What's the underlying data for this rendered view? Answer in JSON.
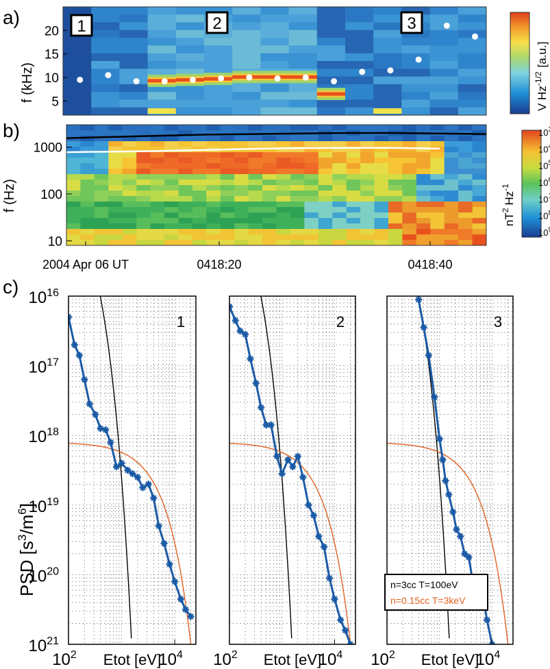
{
  "figure": {
    "panel_labels": [
      "a)",
      "b)",
      "c)"
    ]
  },
  "chart_data": [
    {
      "type": "heatmap",
      "panel": "a)",
      "ylabel": "f (kHz)",
      "yticks": [
        "5",
        "10",
        "15",
        "20"
      ],
      "yticks_values": [
        5,
        10,
        15,
        20
      ],
      "ylim": [
        2,
        25
      ],
      "colorbar_label": "V Hz",
      "colorbar_sup": "-1/2",
      "colorbar_unit": "[a.u.]",
      "region_labels": [
        "1",
        "2",
        "3"
      ],
      "points_khz": [
        9.5,
        10.5,
        9.2,
        9.2,
        9.5,
        9.8,
        10.0,
        9.8,
        10.0,
        9.2,
        11.2,
        11.5,
        13.8,
        21.0,
        18.7
      ],
      "band_peak_khz": [
        null,
        null,
        null,
        9.3,
        9.5,
        9.7,
        10.1,
        10.1,
        10.1,
        6.5,
        null,
        null,
        null,
        null,
        null
      ]
    },
    {
      "type": "heatmap",
      "panel": "b)",
      "ylabel": "f (Hz)",
      "yscale": "log",
      "ylim": [
        8,
        3000
      ],
      "yticks": [
        "10",
        "100",
        "1000"
      ],
      "yticks_values": [
        10,
        100,
        1000
      ],
      "xticks": [
        "2004 Apr 06 UT",
        "0418:20",
        "0418:40"
      ],
      "colorbar_unit": "nT",
      "colorbar_exp": "2",
      "colorbar_unit2": "Hz",
      "colorbar_exp2": "-1",
      "colorbar_ticks": [
        "10",
        "10",
        "10",
        "10",
        "10",
        "10",
        "10"
      ],
      "colorbar_tick_exps": [
        "3",
        "4",
        "5",
        "6",
        "7",
        "8",
        "9"
      ],
      "black_line_hz": [
        1550,
        1650,
        1750,
        1850,
        1900,
        1950,
        2000,
        2000,
        1950,
        1900
      ],
      "white_line_hz": [
        780,
        800,
        830,
        870,
        920,
        950,
        960,
        960,
        930,
        900
      ]
    },
    {
      "type": "line",
      "panel": "c)",
      "yscale": "log",
      "xscale": "log",
      "ylabel": "PSD [s",
      "ylabel_sup1": "3",
      "ylabel_mid": "/m",
      "ylabel_sup2": "6",
      "ylabel_end": "]",
      "xlabel": "Etot [eV]",
      "xlim": [
        100,
        25000
      ],
      "ylim_exponents": [
        -16,
        -21
      ],
      "yticks": [
        "10",
        "10",
        "10",
        "10",
        "10",
        "10"
      ],
      "ytick_exps": [
        "16",
        "17",
        "18",
        "19",
        "20",
        "21"
      ],
      "xticks": [
        "10",
        "10"
      ],
      "xtick_exps": [
        "2",
        "4"
      ],
      "legend": [
        "n=3cc T=100eV",
        "n=0.15cc T=3keV"
      ],
      "colors": {
        "data": "#1a5aa6",
        "cold": "#000000",
        "hot": "#e06020"
      },
      "subplots": [
        {
          "label": "1",
          "series": [
            {
              "E": 100,
              "log10psd": -16.3
            },
            {
              "E": 130,
              "log10psd": -16.7
            },
            {
              "E": 160,
              "log10psd": -16.85
            },
            {
              "E": 200,
              "log10psd": -17.2
            },
            {
              "E": 250,
              "log10psd": -17.55
            },
            {
              "E": 320,
              "log10psd": -17.7
            },
            {
              "E": 400,
              "log10psd": -17.9
            },
            {
              "E": 500,
              "log10psd": -17.92
            },
            {
              "E": 620,
              "log10psd": -18.1
            },
            {
              "E": 800,
              "log10psd": -18.45
            },
            {
              "E": 1000,
              "log10psd": -18.4
            },
            {
              "E": 1300,
              "log10psd": -18.5
            },
            {
              "E": 1600,
              "log10psd": -18.55
            },
            {
              "E": 2000,
              "log10psd": -18.6
            },
            {
              "E": 2500,
              "log10psd": -18.75
            },
            {
              "E": 3200,
              "log10psd": -18.7
            },
            {
              "E": 4000,
              "log10psd": -18.9
            },
            {
              "E": 5000,
              "log10psd": -19.3
            },
            {
              "E": 6300,
              "log10psd": -19.55
            },
            {
              "E": 8000,
              "log10psd": -19.85
            },
            {
              "E": 10000,
              "log10psd": -20.1
            },
            {
              "E": 13000,
              "log10psd": -20.35
            },
            {
              "E": 16000,
              "log10psd": -20.5
            },
            {
              "E": 20000,
              "log10psd": -20.6
            }
          ]
        },
        {
          "label": "2",
          "series": [
            {
              "E": 100,
              "log10psd": -16.15
            },
            {
              "E": 130,
              "log10psd": -16.35
            },
            {
              "E": 160,
              "log10psd": -16.5
            },
            {
              "E": 200,
              "log10psd": -16.55
            },
            {
              "E": 250,
              "log10psd": -16.9
            },
            {
              "E": 320,
              "log10psd": -17.25
            },
            {
              "E": 400,
              "log10psd": -17.6
            },
            {
              "E": 500,
              "log10psd": -17.85
            },
            {
              "E": 620,
              "log10psd": -17.85
            },
            {
              "E": 800,
              "log10psd": -18.3
            },
            {
              "E": 1000,
              "log10psd": -18.55
            },
            {
              "E": 1300,
              "log10psd": -18.35
            },
            {
              "E": 1600,
              "log10psd": -18.45
            },
            {
              "E": 2000,
              "log10psd": -18.3
            },
            {
              "E": 2500,
              "log10psd": -18.6
            },
            {
              "E": 3200,
              "log10psd": -19.0
            },
            {
              "E": 4000,
              "log10psd": -19.15
            },
            {
              "E": 5000,
              "log10psd": -19.45
            },
            {
              "E": 6300,
              "log10psd": -19.6
            },
            {
              "E": 8000,
              "log10psd": -20.05
            },
            {
              "E": 10000,
              "log10psd": -20.35
            },
            {
              "E": 13000,
              "log10psd": -20.65
            },
            {
              "E": 16000,
              "log10psd": -20.8
            },
            {
              "E": 20000,
              "log10psd": -21.0
            }
          ]
        },
        {
          "label": "3",
          "series": [
            {
              "E": 400,
              "log10psd": -16.05
            },
            {
              "E": 500,
              "log10psd": -16.45
            },
            {
              "E": 620,
              "log10psd": -16.85
            },
            {
              "E": 800,
              "log10psd": -17.45
            },
            {
              "E": 1000,
              "log10psd": -18.05
            },
            {
              "E": 1150,
              "log10psd": -18.35
            },
            {
              "E": 1300,
              "log10psd": -18.65
            },
            {
              "E": 1500,
              "log10psd": -18.85
            },
            {
              "E": 1800,
              "log10psd": -19.1
            },
            {
              "E": 2100,
              "log10psd": -19.35
            },
            {
              "E": 2500,
              "log10psd": -19.45
            },
            {
              "E": 3000,
              "log10psd": -19.7
            },
            {
              "E": 3600,
              "log10psd": -19.75
            },
            {
              "E": 4300,
              "log10psd": -20.1
            },
            {
              "E": 5200,
              "log10psd": -20.4
            },
            {
              "E": 6300,
              "log10psd": -20.2
            },
            {
              "E": 8000,
              "log10psd": -20.65
            },
            {
              "E": 10000,
              "log10psd": -21.0
            }
          ]
        }
      ]
    }
  ]
}
